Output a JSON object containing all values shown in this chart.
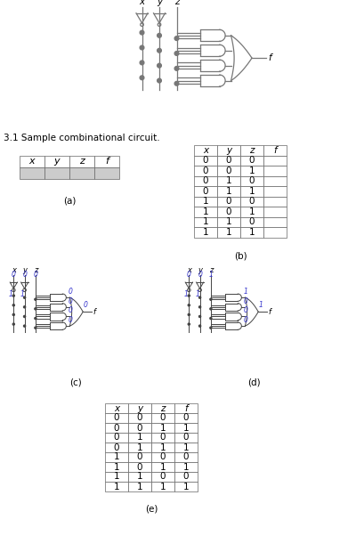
{
  "caption": "3.1 Sample combinational circuit.",
  "bg_color": "#ffffff",
  "black": "#000000",
  "gray": "#888888",
  "blue": "#3333cc",
  "table_b_rows": [
    [
      0,
      0,
      0
    ],
    [
      0,
      0,
      1
    ],
    [
      0,
      1,
      0
    ],
    [
      0,
      1,
      1
    ],
    [
      1,
      0,
      0
    ],
    [
      1,
      0,
      1
    ],
    [
      1,
      1,
      0
    ],
    [
      1,
      1,
      1
    ]
  ],
  "table_e_rows": [
    [
      0,
      0,
      0,
      0
    ],
    [
      0,
      0,
      1,
      1
    ],
    [
      0,
      1,
      0,
      0
    ],
    [
      0,
      1,
      1,
      1
    ],
    [
      1,
      0,
      0,
      0
    ],
    [
      1,
      0,
      1,
      1
    ],
    [
      1,
      1,
      0,
      0
    ],
    [
      1,
      1,
      1,
      1
    ]
  ],
  "headers": [
    "x",
    "y",
    "z",
    "f"
  ],
  "subfig_labels": [
    "(a)",
    "(b)",
    "(c)",
    "(d)",
    "(e)"
  ]
}
